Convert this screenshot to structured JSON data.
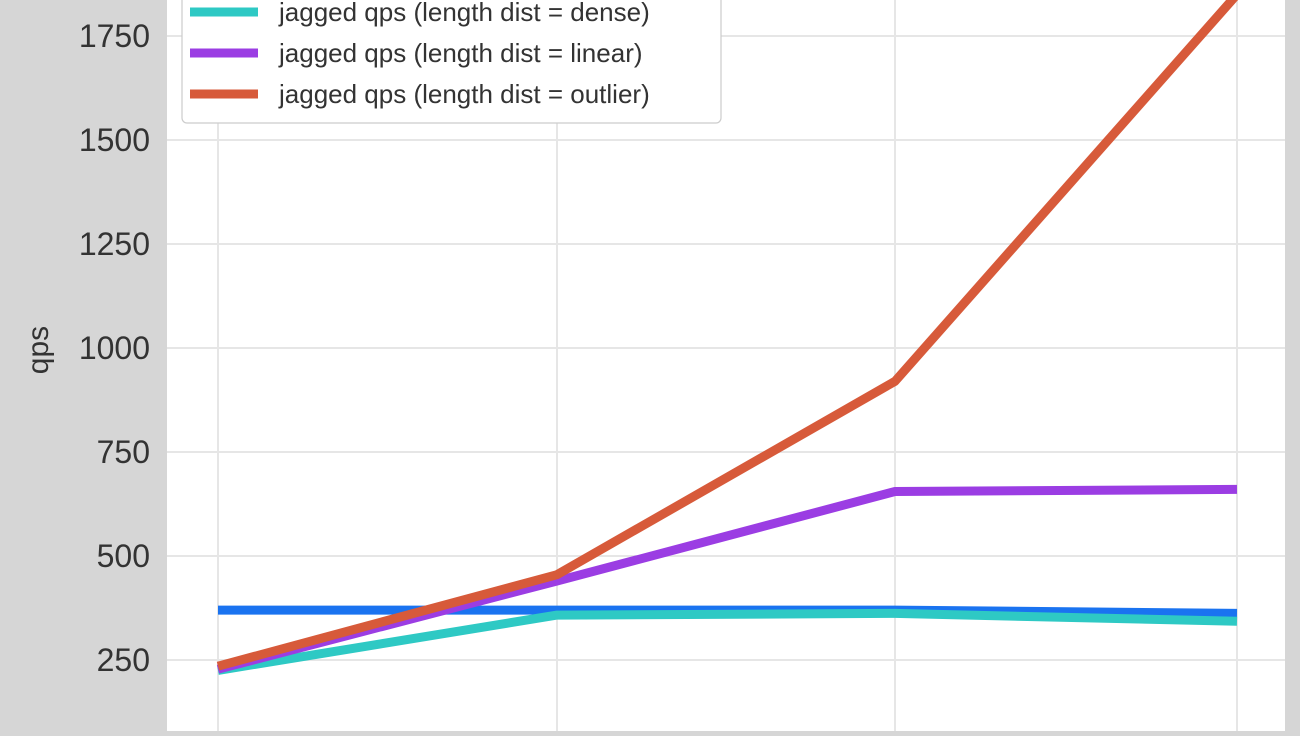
{
  "chart_data": {
    "type": "line",
    "ylabel": "qps",
    "xlabel": "",
    "x": [
      1,
      2,
      3,
      4
    ],
    "ylim": [
      130,
      1850
    ],
    "yticks": [
      250,
      500,
      750,
      1000,
      1250,
      1500,
      1750
    ],
    "grid": true,
    "legend_position": "top-left",
    "series": [
      {
        "name": "",
        "color": "#1a73f0",
        "values": [
          370,
          370,
          370,
          362
        ]
      },
      {
        "name": "jagged qps (length dist = dense)",
        "color": "#2ec9c4",
        "values": [
          225,
          358,
          362,
          343
        ]
      },
      {
        "name": "jagged qps (length dist = linear)",
        "color": "#9b3de3",
        "values": [
          228,
          440,
          655,
          660
        ]
      },
      {
        "name": "jagged qps (length dist = outlier)",
        "color": "#d75a3a",
        "values": [
          235,
          455,
          920,
          1850
        ]
      }
    ],
    "legend": [
      "jagged qps (length dist = dense)",
      "jagged qps (length dist = linear)",
      "jagged qps (length dist = outlier)"
    ]
  }
}
